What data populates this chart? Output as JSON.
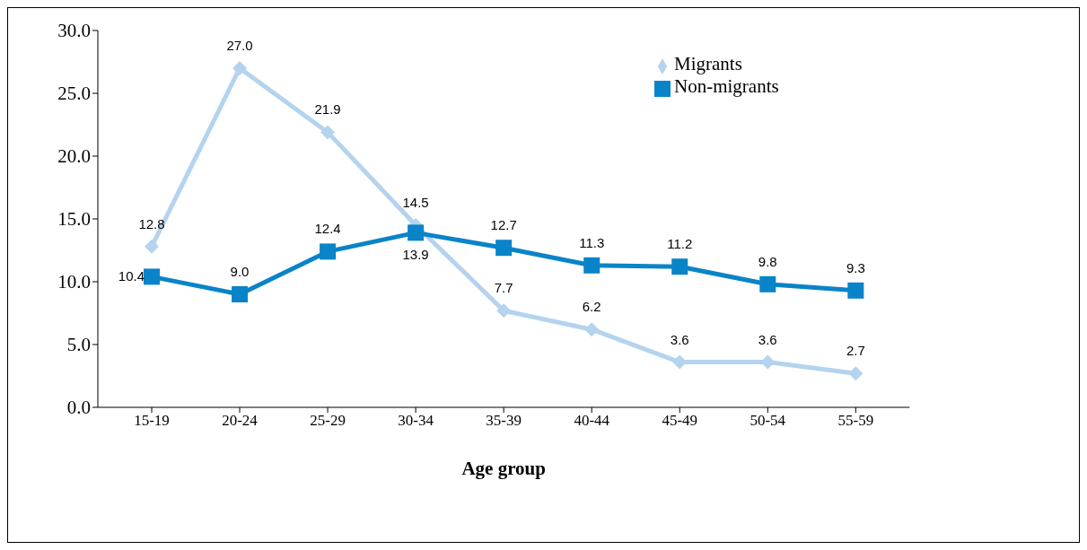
{
  "chart_data": {
    "type": "line",
    "xlabel": "Age group",
    "categories": [
      "15-19",
      "20-24",
      "25-29",
      "30-34",
      "35-39",
      "40-44",
      "45-49",
      "50-54",
      "55-59"
    ],
    "series": [
      {
        "name": "Migrants",
        "color": "#b4d3ef",
        "marker": "diamond",
        "values": [
          12.8,
          27.0,
          21.9,
          14.5,
          7.7,
          6.2,
          3.6,
          3.6,
          2.7
        ],
        "value_labels": [
          "12.8",
          "27.0",
          "21.9",
          "14.5",
          "7.7",
          "6.2",
          "3.6",
          "3.6",
          "2.7"
        ]
      },
      {
        "name": "Non-migrants",
        "color": "#0a84c8",
        "marker": "square",
        "values": [
          10.4,
          9.0,
          12.4,
          13.9,
          12.7,
          11.3,
          11.2,
          9.8,
          9.3
        ],
        "value_labels": [
          "10.4",
          "9.0",
          "12.4",
          "13.9",
          "12.7",
          "11.3",
          "11.2",
          "9.8",
          "9.3"
        ]
      }
    ],
    "ylim": [
      0,
      30
    ],
    "yticks": [
      {
        "value": 0,
        "label": "0.0"
      },
      {
        "value": 5,
        "label": "5.0"
      },
      {
        "value": 10,
        "label": "10.0"
      },
      {
        "value": 15,
        "label": "15.0"
      },
      {
        "value": 20,
        "label": "20.0"
      },
      {
        "value": 25,
        "label": "25.0"
      },
      {
        "value": 30,
        "label": "30.0"
      }
    ],
    "grid": false,
    "legend": "top right",
    "line_style": "solid"
  }
}
